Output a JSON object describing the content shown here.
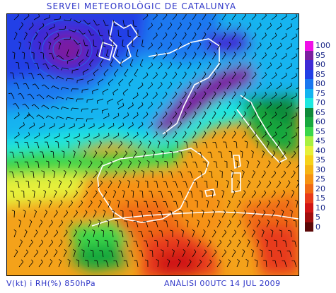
{
  "title": "SERVEI METEOROLÒGIC DE CATALUNYA",
  "footer": {
    "variables": "V(kt) i RH(%) 850hPa",
    "analysis": "ANÀLISI 00UTC 14 JUL 2009"
  },
  "legend": {
    "items": [
      {
        "label": "100",
        "color": "#f010e8"
      },
      {
        "label": "95",
        "color": "#7a1fa0"
      },
      {
        "label": "90",
        "color": "#3e2bd6"
      },
      {
        "label": "85",
        "color": "#2140e6"
      },
      {
        "label": "80",
        "color": "#1a78f0"
      },
      {
        "label": "75",
        "color": "#13b4f0"
      },
      {
        "label": "70",
        "color": "#1ee8e0"
      },
      {
        "label": "65",
        "color": "#0f8a3a"
      },
      {
        "label": "60",
        "color": "#17a83e"
      },
      {
        "label": "55",
        "color": "#3ad64a"
      },
      {
        "label": "45",
        "color": "#a8f040"
      },
      {
        "label": "40",
        "color": "#e6f03a"
      },
      {
        "label": "35",
        "color": "#f6d21a"
      },
      {
        "label": "30",
        "color": "#f6b414"
      },
      {
        "label": "25",
        "color": "#f69212"
      },
      {
        "label": "20",
        "color": "#f06a14"
      },
      {
        "label": "15",
        "color": "#e83a1a"
      },
      {
        "label": "10",
        "color": "#d01414"
      },
      {
        "label": "5",
        "color": "#a00e0e"
      },
      {
        "label": "0",
        "color": "#5a0808"
      }
    ]
  }
}
